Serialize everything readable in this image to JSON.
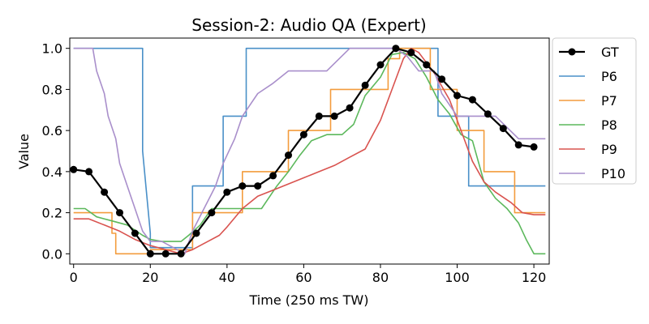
{
  "chart_data": {
    "type": "line",
    "title": "Session-2: Audio QA (Expert)",
    "xlabel": "Time (250 ms TW)",
    "ylabel": "Value",
    "xlim": [
      -1,
      124
    ],
    "ylim": [
      -0.05,
      1.05
    ],
    "xticks": [
      0,
      20,
      40,
      60,
      80,
      100,
      120
    ],
    "yticks": [
      0.0,
      0.2,
      0.4,
      0.6,
      0.8,
      1.0
    ],
    "xtick_labels": [
      "0",
      "20",
      "40",
      "60",
      "80",
      "100",
      "120"
    ],
    "ytick_labels": [
      "0.0",
      "0.2",
      "0.4",
      "0.6",
      "0.8",
      "1.0"
    ],
    "legend_position": "outside-right",
    "grid": false,
    "series": [
      {
        "name": "GT",
        "color": "#000000",
        "marker": "circle",
        "x": [
          0,
          4,
          8,
          12,
          16,
          20,
          24,
          28,
          32,
          36,
          40,
          44,
          48,
          52,
          56,
          60,
          64,
          68,
          72,
          76,
          80,
          84,
          88,
          92,
          96,
          100,
          104,
          108,
          112,
          116,
          120
        ],
        "y": [
          0.41,
          0.4,
          0.3,
          0.2,
          0.1,
          0.0,
          0.0,
          0.0,
          0.1,
          0.2,
          0.3,
          0.33,
          0.33,
          0.38,
          0.48,
          0.58,
          0.67,
          0.67,
          0.71,
          0.82,
          0.92,
          1.0,
          0.98,
          0.92,
          0.85,
          0.77,
          0.75,
          0.68,
          0.61,
          0.53,
          0.52
        ]
      },
      {
        "name": "P6",
        "color": "#4a90c8",
        "x": [
          0,
          18,
          18,
          20,
          20,
          31,
          31,
          39,
          39,
          45,
          45,
          95,
          95,
          103,
          103,
          123
        ],
        "y": [
          1.0,
          1.0,
          0.5,
          0.1,
          0.03,
          0.03,
          0.33,
          0.33,
          0.67,
          0.67,
          1.0,
          1.0,
          0.67,
          0.67,
          0.33,
          0.33
        ]
      },
      {
        "name": "P7",
        "color": "#f39c3d",
        "x": [
          0,
          10,
          10,
          11,
          11,
          20,
          20,
          31,
          31,
          44,
          44,
          56,
          56,
          67,
          67,
          82,
          82,
          85,
          85,
          93,
          93,
          100,
          100,
          107,
          107,
          115,
          115,
          123
        ],
        "y": [
          0.2,
          0.2,
          0.1,
          0.1,
          0.0,
          0.0,
          0.02,
          0.02,
          0.2,
          0.2,
          0.4,
          0.4,
          0.6,
          0.6,
          0.8,
          0.8,
          0.95,
          0.95,
          1.0,
          1.0,
          0.8,
          0.8,
          0.6,
          0.6,
          0.4,
          0.4,
          0.2,
          0.2
        ]
      },
      {
        "name": "P8",
        "color": "#5cb85c",
        "x": [
          0,
          3,
          6,
          10,
          14,
          18,
          20,
          23,
          28,
          30,
          33,
          36,
          40,
          45,
          49,
          53,
          56,
          59,
          62,
          66,
          70,
          73,
          76,
          80,
          83,
          86,
          89,
          92,
          95,
          98,
          101,
          104,
          107,
          110,
          113,
          116,
          118,
          120,
          123
        ],
        "y": [
          0.22,
          0.22,
          0.18,
          0.16,
          0.14,
          0.09,
          0.07,
          0.06,
          0.06,
          0.09,
          0.14,
          0.22,
          0.22,
          0.22,
          0.22,
          0.33,
          0.4,
          0.48,
          0.55,
          0.58,
          0.58,
          0.63,
          0.77,
          0.86,
          0.97,
          0.98,
          0.95,
          0.86,
          0.75,
          0.68,
          0.58,
          0.55,
          0.35,
          0.27,
          0.22,
          0.15,
          0.07,
          0.0,
          0.0
        ]
      },
      {
        "name": "P9",
        "color": "#d9534f",
        "x": [
          0,
          4,
          8,
          12,
          16,
          20,
          24,
          28,
          31,
          34,
          38,
          40,
          44,
          48,
          52,
          56,
          60,
          64,
          68,
          72,
          76,
          80,
          83,
          86,
          88,
          90,
          94,
          98,
          101,
          104,
          107,
          110,
          114,
          117,
          120,
          123
        ],
        "y": [
          0.17,
          0.17,
          0.14,
          0.11,
          0.07,
          0.04,
          0.02,
          0.0,
          0.02,
          0.05,
          0.09,
          0.13,
          0.22,
          0.28,
          0.31,
          0.34,
          0.37,
          0.4,
          0.43,
          0.47,
          0.51,
          0.65,
          0.8,
          0.95,
          1.0,
          0.98,
          0.88,
          0.75,
          0.6,
          0.45,
          0.35,
          0.3,
          0.25,
          0.2,
          0.19,
          0.19
        ]
      },
      {
        "name": "P10",
        "color": "#a98fcb",
        "x": [
          0,
          5,
          6,
          8,
          9,
          11,
          12,
          14,
          16,
          18,
          20,
          23,
          26,
          29,
          31,
          34,
          37,
          39,
          42,
          44,
          48,
          52,
          56,
          60,
          66,
          72,
          76,
          84,
          87,
          90,
          94,
          96,
          100,
          104,
          110,
          116,
          123
        ],
        "y": [
          1.0,
          1.0,
          0.89,
          0.78,
          0.67,
          0.56,
          0.44,
          0.33,
          0.22,
          0.11,
          0.06,
          0.06,
          0.03,
          0.0,
          0.11,
          0.22,
          0.33,
          0.44,
          0.56,
          0.67,
          0.78,
          0.83,
          0.89,
          0.89,
          0.89,
          1.0,
          1.0,
          1.0,
          0.96,
          0.89,
          0.89,
          0.78,
          0.67,
          0.67,
          0.67,
          0.56,
          0.56
        ]
      }
    ]
  }
}
